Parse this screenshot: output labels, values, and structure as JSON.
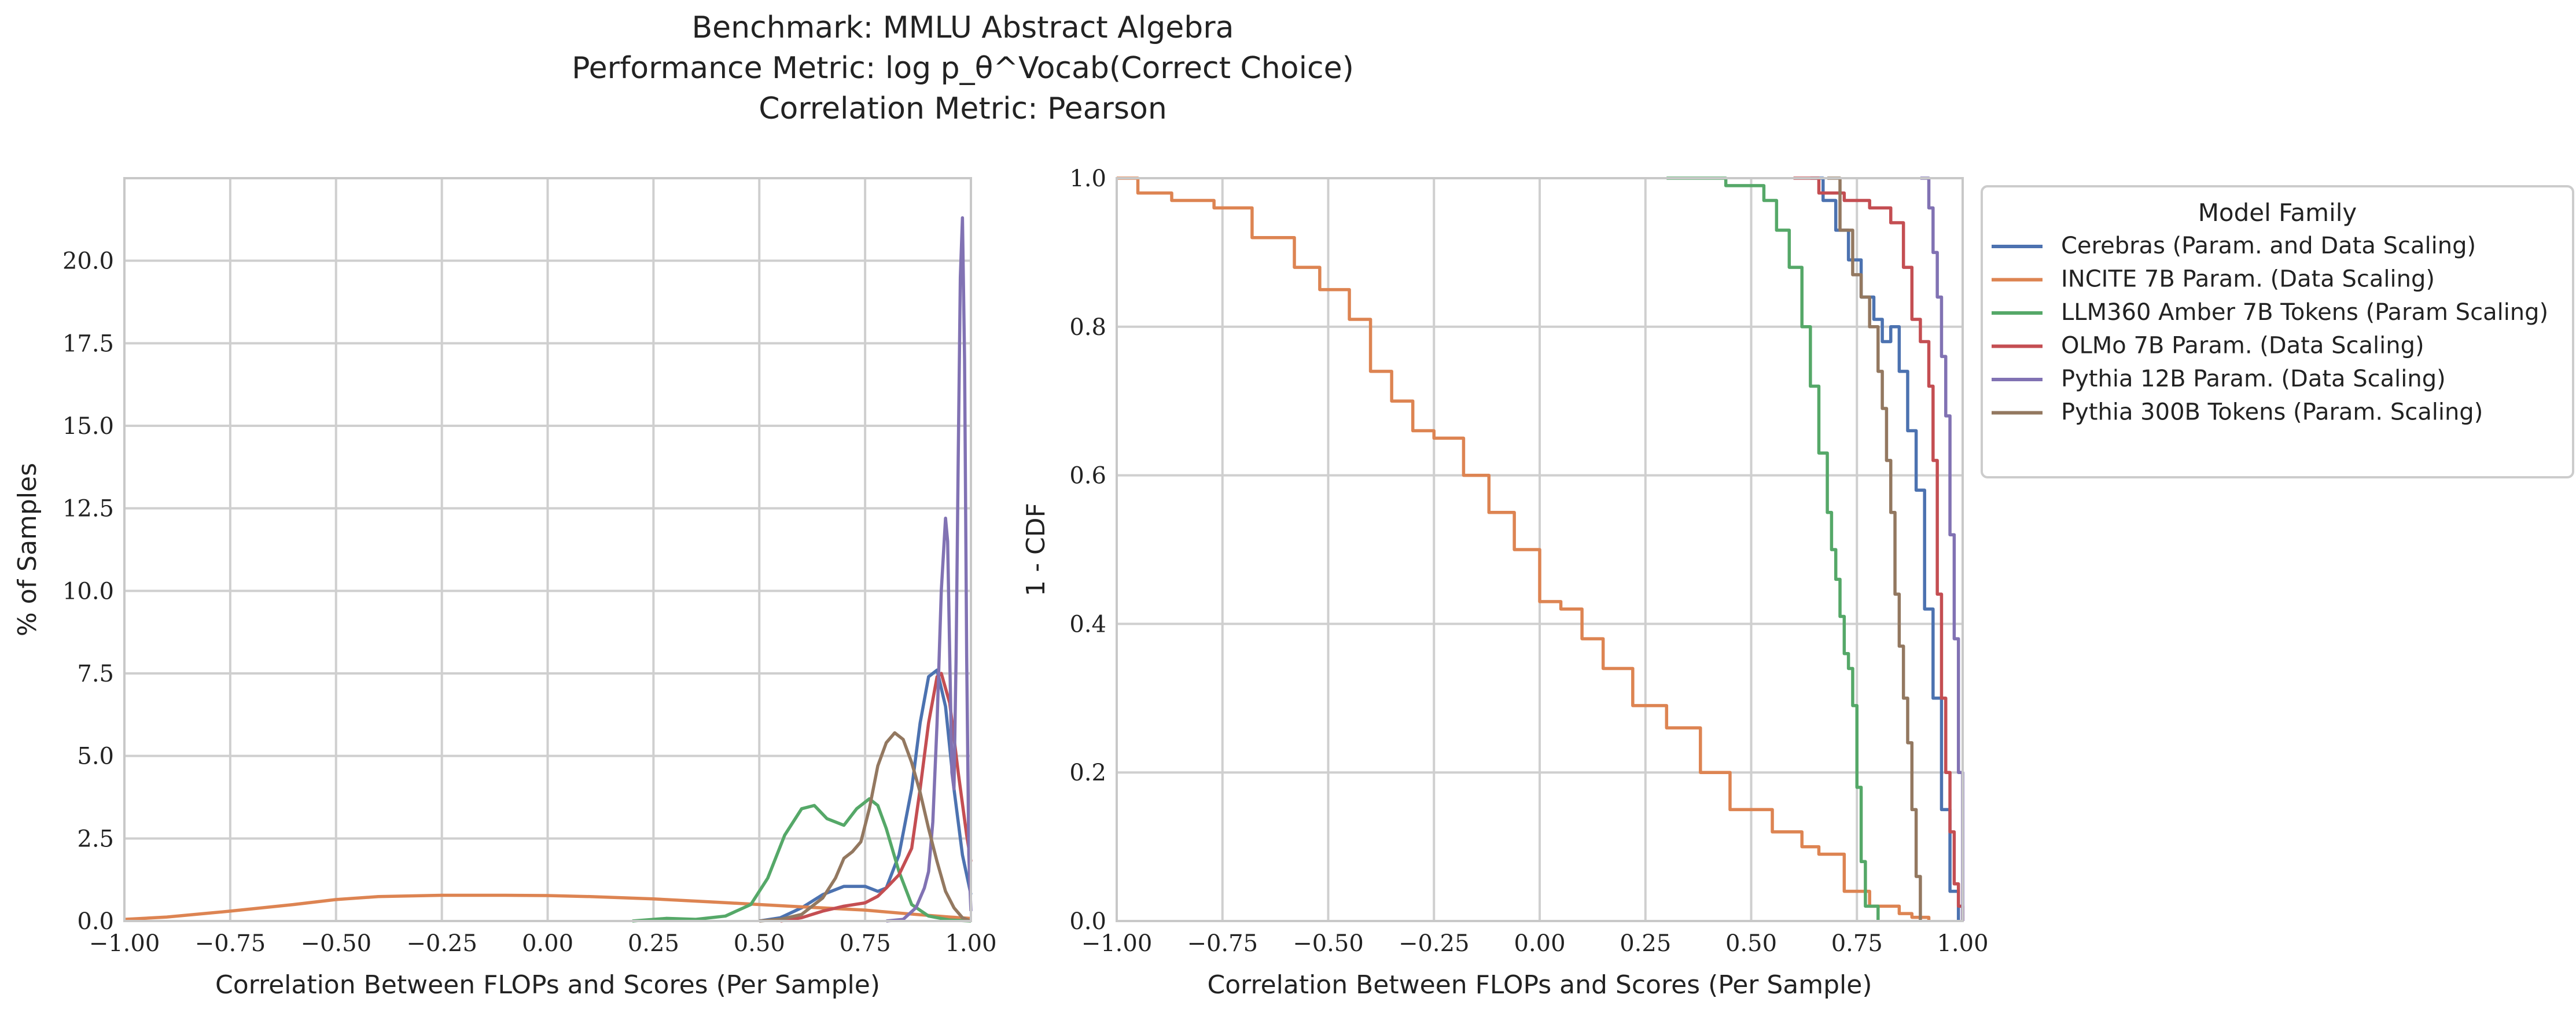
{
  "figure": {
    "title_lines": [
      "Benchmark: MMLU Abstract Algebra",
      "Performance Metric: log p_θ^Vocab(Correct Choice)",
      "Correlation Metric: Pearson"
    ]
  },
  "colors": {
    "Cerebras (Param. and Data Scaling)": "#4c72b0",
    "INCITE 7B Param. (Data Scaling)": "#dd8452",
    "LLM360 Amber 7B Tokens (Param Scaling)": "#55a868",
    "OLMo 7B Param. (Data Scaling)": "#c44e52",
    "Pythia 12B Param. (Data Scaling)": "#8172b3",
    "Pythia 300B Tokens (Param. Scaling)": "#937860"
  },
  "legend": {
    "title": "Model Family",
    "entries": [
      "Cerebras (Param. and Data Scaling)",
      "INCITE 7B Param. (Data Scaling)",
      "LLM360 Amber 7B Tokens (Param Scaling)",
      "OLMo 7B Param. (Data Scaling)",
      "Pythia 12B Param. (Data Scaling)",
      "Pythia 300B Tokens (Param. Scaling)"
    ]
  },
  "chart_data": [
    {
      "type": "line",
      "subtype": "kde",
      "xlabel": "Correlation Between FLOPs and Scores (Per Sample)",
      "ylabel": "% of Samples",
      "xlim": [
        -1.0,
        1.0
      ],
      "ylim": [
        0,
        22.5
      ],
      "xticks": [
        "−1.00",
        "−0.75",
        "−0.50",
        "−0.25",
        "0.00",
        "0.25",
        "0.50",
        "0.75",
        "1.00"
      ],
      "yticks": [
        "0.0",
        "2.5",
        "5.0",
        "7.5",
        "10.0",
        "12.5",
        "15.0",
        "17.5",
        "20.0"
      ],
      "grid": true,
      "series": [
        {
          "name": "Cerebras (Param. and Data Scaling)",
          "x": [
            0.5,
            0.55,
            0.6,
            0.65,
            0.7,
            0.75,
            0.78,
            0.8,
            0.83,
            0.86,
            0.88,
            0.9,
            0.92,
            0.94,
            0.96,
            0.98,
            1.0
          ],
          "y": [
            0,
            0.1,
            0.4,
            0.8,
            1.05,
            1.05,
            0.9,
            1.0,
            2.0,
            4.0,
            6.0,
            7.4,
            7.6,
            6.5,
            4.0,
            2.0,
            0.8
          ]
        },
        {
          "name": "INCITE 7B Param. (Data Scaling)",
          "x": [
            -1.0,
            -0.9,
            -0.75,
            -0.6,
            -0.5,
            -0.4,
            -0.25,
            -0.1,
            0.0,
            0.1,
            0.25,
            0.4,
            0.5,
            0.6,
            0.75,
            0.85,
            0.95,
            1.0
          ],
          "y": [
            0.05,
            0.12,
            0.3,
            0.5,
            0.65,
            0.74,
            0.78,
            0.78,
            0.77,
            0.74,
            0.67,
            0.57,
            0.5,
            0.43,
            0.33,
            0.22,
            0.12,
            0.08
          ]
        },
        {
          "name": "LLM360 Amber 7B Tokens (Param Scaling)",
          "x": [
            0.2,
            0.28,
            0.35,
            0.42,
            0.48,
            0.52,
            0.56,
            0.6,
            0.63,
            0.66,
            0.7,
            0.73,
            0.76,
            0.78,
            0.8,
            0.83,
            0.86,
            0.9,
            0.95,
            1.0
          ],
          "y": [
            0,
            0.08,
            0.05,
            0.15,
            0.5,
            1.3,
            2.6,
            3.4,
            3.5,
            3.1,
            2.9,
            3.4,
            3.7,
            3.5,
            2.8,
            1.5,
            0.5,
            0.15,
            0.03,
            0
          ]
        },
        {
          "name": "OLMo 7B Param. (Data Scaling)",
          "x": [
            0.55,
            0.6,
            0.65,
            0.7,
            0.75,
            0.78,
            0.8,
            0.83,
            0.86,
            0.88,
            0.9,
            0.92,
            0.93,
            0.95,
            0.97,
            0.99,
            1.0
          ],
          "y": [
            0,
            0.1,
            0.3,
            0.45,
            0.55,
            0.75,
            1.0,
            1.4,
            2.2,
            4.0,
            6.0,
            7.4,
            7.5,
            6.6,
            4.5,
            2.6,
            1.8
          ]
        },
        {
          "name": "Pythia 12B Param. (Data Scaling)",
          "x": [
            0.8,
            0.84,
            0.87,
            0.89,
            0.9,
            0.91,
            0.92,
            0.93,
            0.94,
            0.945,
            0.95,
            0.955,
            0.96,
            0.965,
            0.97,
            0.975,
            0.98,
            0.985,
            0.99,
            0.995,
            1.0
          ],
          "y": [
            0,
            0.05,
            0.4,
            1.0,
            1.5,
            3.0,
            6.0,
            10.0,
            12.2,
            11.5,
            8.0,
            4.5,
            4.0,
            8.0,
            14.0,
            19.5,
            21.3,
            17.0,
            8.0,
            2.0,
            0.3
          ]
        },
        {
          "name": "Pythia 300B Tokens (Param. Scaling)",
          "x": [
            0.5,
            0.55,
            0.6,
            0.65,
            0.68,
            0.7,
            0.72,
            0.74,
            0.76,
            0.78,
            0.8,
            0.82,
            0.84,
            0.86,
            0.88,
            0.9,
            0.92,
            0.94,
            0.96,
            0.98,
            1.0
          ],
          "y": [
            0,
            0.05,
            0.2,
            0.7,
            1.3,
            1.9,
            2.1,
            2.4,
            3.4,
            4.7,
            5.4,
            5.7,
            5.5,
            4.8,
            3.9,
            2.8,
            1.8,
            0.9,
            0.4,
            0.1,
            0
          ]
        }
      ]
    },
    {
      "type": "line",
      "subtype": "step",
      "xlabel": "Correlation Between FLOPs and Scores (Per Sample)",
      "ylabel": "1 - CDF",
      "xlim": [
        -1.0,
        1.0
      ],
      "ylim": [
        0,
        1.0
      ],
      "xticks": [
        "−1.00",
        "−0.75",
        "−0.50",
        "−0.25",
        "0.00",
        "0.25",
        "0.50",
        "0.75",
        "1.00"
      ],
      "yticks": [
        "0.0",
        "0.2",
        "0.4",
        "0.6",
        "0.8",
        "1.0"
      ],
      "grid": true,
      "legend_position": "outside-upper-right",
      "series": [
        {
          "name": "Cerebras (Param. and Data Scaling)",
          "x": [
            0.64,
            0.67,
            0.7,
            0.73,
            0.76,
            0.79,
            0.81,
            0.83,
            0.85,
            0.87,
            0.89,
            0.91,
            0.93,
            0.95,
            0.97,
            0.99
          ],
          "y": [
            1.0,
            0.97,
            0.93,
            0.89,
            0.84,
            0.81,
            0.78,
            0.8,
            0.74,
            0.66,
            0.58,
            0.42,
            0.3,
            0.15,
            0.04,
            0.0
          ]
        },
        {
          "name": "INCITE 7B Param. (Data Scaling)",
          "x": [
            -1.0,
            -0.95,
            -0.87,
            -0.77,
            -0.68,
            -0.58,
            -0.52,
            -0.45,
            -0.4,
            -0.35,
            -0.3,
            -0.25,
            -0.18,
            -0.12,
            -0.06,
            0.0,
            0.05,
            0.1,
            0.15,
            0.22,
            0.3,
            0.38,
            0.45,
            0.55,
            0.62,
            0.66,
            0.72,
            0.78,
            0.85,
            0.88,
            0.92
          ],
          "y": [
            1.0,
            0.98,
            0.97,
            0.96,
            0.92,
            0.88,
            0.85,
            0.81,
            0.74,
            0.7,
            0.66,
            0.65,
            0.6,
            0.55,
            0.5,
            0.43,
            0.42,
            0.38,
            0.34,
            0.29,
            0.26,
            0.2,
            0.15,
            0.12,
            0.1,
            0.09,
            0.04,
            0.02,
            0.01,
            0.005,
            0.0
          ]
        },
        {
          "name": "LLM360 Amber 7B Tokens (Param Scaling)",
          "x": [
            0.3,
            0.44,
            0.53,
            0.56,
            0.59,
            0.62,
            0.64,
            0.66,
            0.68,
            0.69,
            0.7,
            0.71,
            0.72,
            0.73,
            0.74,
            0.75,
            0.76,
            0.77,
            0.8
          ],
          "y": [
            1.0,
            0.99,
            0.97,
            0.93,
            0.88,
            0.8,
            0.72,
            0.63,
            0.55,
            0.5,
            0.46,
            0.41,
            0.36,
            0.34,
            0.29,
            0.18,
            0.08,
            0.02,
            0.0
          ]
        },
        {
          "name": "OLMo 7B Param. (Data Scaling)",
          "x": [
            0.6,
            0.66,
            0.72,
            0.78,
            0.83,
            0.86,
            0.88,
            0.9,
            0.92,
            0.93,
            0.94,
            0.95,
            0.96,
            0.97,
            0.98,
            0.99,
            1.0
          ],
          "y": [
            1.0,
            0.98,
            0.97,
            0.96,
            0.94,
            0.88,
            0.81,
            0.78,
            0.72,
            0.62,
            0.44,
            0.3,
            0.2,
            0.12,
            0.05,
            0.02,
            0.0
          ]
        },
        {
          "name": "Pythia 12B Param. (Data Scaling)",
          "x": [
            0.9,
            0.92,
            0.93,
            0.94,
            0.95,
            0.96,
            0.97,
            0.98,
            0.99,
            1.0
          ],
          "y": [
            1.0,
            0.96,
            0.9,
            0.84,
            0.76,
            0.68,
            0.52,
            0.38,
            0.2,
            0.0
          ]
        },
        {
          "name": "Pythia 300B Tokens (Param. Scaling)",
          "x": [
            0.68,
            0.71,
            0.74,
            0.76,
            0.78,
            0.8,
            0.81,
            0.82,
            0.83,
            0.84,
            0.85,
            0.86,
            0.87,
            0.88,
            0.89,
            0.9
          ],
          "y": [
            1.0,
            0.93,
            0.87,
            0.84,
            0.8,
            0.74,
            0.69,
            0.62,
            0.55,
            0.44,
            0.37,
            0.3,
            0.24,
            0.15,
            0.06,
            0.0
          ]
        }
      ]
    }
  ]
}
